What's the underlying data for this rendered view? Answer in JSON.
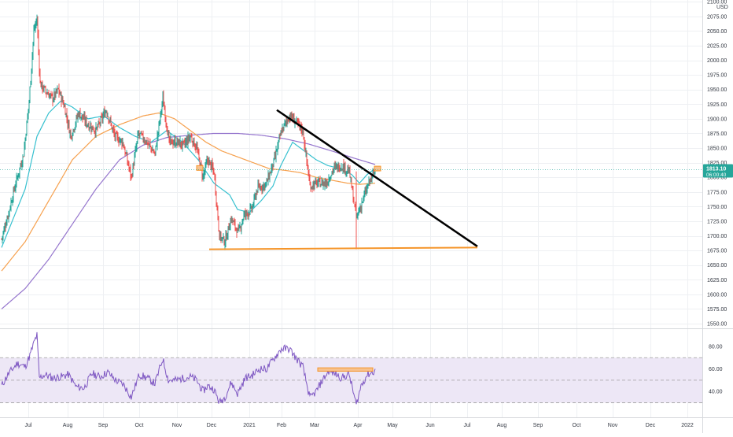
{
  "chart_data": [
    {
      "type": "candlestick",
      "title": "",
      "currency": "USD",
      "x_ticks": [
        "Jul",
        "Aug",
        "Sep",
        "Oct",
        "Nov",
        "Dec",
        "2021",
        "Feb",
        "Mar",
        "Apr",
        "May",
        "Jun",
        "Jul",
        "Aug",
        "Sep",
        "Oct",
        "Nov",
        "Dec",
        "2022"
      ],
      "y_ticks": [
        "2100.00",
        "2075.00",
        "2050.00",
        "2025.00",
        "2000.00",
        "1975.00",
        "1950.00",
        "1925.00",
        "1900.00",
        "1875.00",
        "1850.00",
        "1825.00",
        "1800.00",
        "1775.00",
        "1750.00",
        "1725.00",
        "1700.00",
        "1675.00",
        "1650.00",
        "1625.00",
        "1600.00",
        "1575.00",
        "1550.00"
      ],
      "ylim": [
        1546,
        2103
      ],
      "price_label": "1813.10",
      "countdown_label": "06:00:40",
      "colors": {
        "up": "#26a69a",
        "down": "#ef5350",
        "ma_short": "#36c0cf",
        "ma_mid": "#f6a04d",
        "ma_long": "#9575cd",
        "trendline": "#000000",
        "support": "#f5952a",
        "highlight_fill": "#f7c28e",
        "highlight_stroke": "#f5952a"
      },
      "price_keypoints": [
        [
          0,
          1695
        ],
        [
          8,
          1735
        ],
        [
          18,
          1790
        ],
        [
          28,
          1840
        ],
        [
          35,
          1930
        ],
        [
          41,
          2050
        ],
        [
          45,
          2070
        ],
        [
          49,
          1960
        ],
        [
          57,
          1945
        ],
        [
          65,
          1935
        ],
        [
          72,
          1950
        ],
        [
          80,
          1920
        ],
        [
          88,
          1870
        ],
        [
          98,
          1910
        ],
        [
          110,
          1890
        ],
        [
          120,
          1880
        ],
        [
          133,
          1915
        ],
        [
          144,
          1870
        ],
        [
          154,
          1860
        ],
        [
          165,
          1800
        ],
        [
          174,
          1875
        ],
        [
          185,
          1860
        ],
        [
          195,
          1840
        ],
        [
          205,
          1935
        ],
        [
          213,
          1860
        ],
        [
          222,
          1860
        ],
        [
          232,
          1855
        ],
        [
          240,
          1870
        ],
        [
          248,
          1850
        ],
        [
          256,
          1800
        ],
        [
          262,
          1830
        ],
        [
          270,
          1810
        ],
        [
          277,
          1700
        ],
        [
          284,
          1690
        ],
        [
          292,
          1730
        ],
        [
          301,
          1705
        ],
        [
          308,
          1735
        ],
        [
          318,
          1745
        ],
        [
          325,
          1780
        ],
        [
          337,
          1790
        ],
        [
          347,
          1830
        ],
        [
          356,
          1880
        ],
        [
          366,
          1905
        ],
        [
          374,
          1895
        ],
        [
          383,
          1880
        ],
        [
          392,
          1785
        ],
        [
          402,
          1790
        ],
        [
          413,
          1790
        ],
        [
          422,
          1815
        ],
        [
          432,
          1820
        ],
        [
          442,
          1810
        ],
        [
          451,
          1730
        ],
        [
          459,
          1760
        ],
        [
          467,
          1790
        ],
        [
          475,
          1812
        ]
      ],
      "ma_short_keypoints": [
        [
          0,
          1680
        ],
        [
          15,
          1730
        ],
        [
          30,
          1780
        ],
        [
          45,
          1870
        ],
        [
          60,
          1910
        ],
        [
          75,
          1930
        ],
        [
          90,
          1920
        ],
        [
          110,
          1900
        ],
        [
          130,
          1905
        ],
        [
          150,
          1885
        ],
        [
          170,
          1870
        ],
        [
          190,
          1860
        ],
        [
          210,
          1880
        ],
        [
          230,
          1860
        ],
        [
          250,
          1830
        ],
        [
          270,
          1790
        ],
        [
          290,
          1770
        ],
        [
          300,
          1745
        ],
        [
          315,
          1740
        ],
        [
          330,
          1760
        ],
        [
          345,
          1785
        ],
        [
          355,
          1820
        ],
        [
          370,
          1860
        ],
        [
          385,
          1845
        ],
        [
          400,
          1830
        ],
        [
          415,
          1820
        ],
        [
          430,
          1815
        ],
        [
          445,
          1805
        ],
        [
          455,
          1790
        ],
        [
          465,
          1805
        ],
        [
          475,
          1815
        ]
      ],
      "ma_mid_keypoints": [
        [
          0,
          1640
        ],
        [
          30,
          1690
        ],
        [
          60,
          1760
        ],
        [
          90,
          1830
        ],
        [
          120,
          1870
        ],
        [
          150,
          1890
        ],
        [
          180,
          1905
        ],
        [
          200,
          1910
        ],
        [
          220,
          1900
        ],
        [
          240,
          1880
        ],
        [
          260,
          1860
        ],
        [
          280,
          1845
        ],
        [
          300,
          1835
        ],
        [
          320,
          1825
        ],
        [
          340,
          1815
        ],
        [
          360,
          1812
        ],
        [
          380,
          1808
        ],
        [
          400,
          1800
        ],
        [
          420,
          1795
        ],
        [
          440,
          1790
        ],
        [
          455,
          1788
        ],
        [
          475,
          1790
        ]
      ],
      "ma_long_keypoints": [
        [
          0,
          1575
        ],
        [
          30,
          1610
        ],
        [
          60,
          1660
        ],
        [
          90,
          1720
        ],
        [
          120,
          1780
        ],
        [
          150,
          1830
        ],
        [
          180,
          1855
        ],
        [
          210,
          1868
        ],
        [
          240,
          1872
        ],
        [
          270,
          1875
        ],
        [
          300,
          1875
        ],
        [
          330,
          1872
        ],
        [
          360,
          1866
        ],
        [
          390,
          1857
        ],
        [
          420,
          1845
        ],
        [
          450,
          1832
        ],
        [
          475,
          1822
        ]
      ],
      "annotations": {
        "trendline": [
          {
            "bar": 350,
            "price": 1915
          },
          {
            "bar": 605,
            "price": 1682
          }
        ],
        "support": [
          {
            "bar": 264,
            "price": 1677
          },
          {
            "bar": 605,
            "price": 1680
          }
        ],
        "highlight_boxes": [
          {
            "bar_from": 248,
            "bar_to": 256,
            "price_from": 1812,
            "price_to": 1820
          },
          {
            "bar_from": 474,
            "bar_to": 482,
            "price_from": 1811,
            "price_to": 1819
          }
        ]
      }
    },
    {
      "type": "line",
      "title": "",
      "y_ticks": [
        "80.00",
        "60.00",
        "40.00"
      ],
      "ylim": [
        17,
        94
      ],
      "band": [
        30,
        70
      ],
      "midline": 50,
      "colors": {
        "line": "#7e57c2",
        "band": "#ede7f6",
        "band_lines": "#9e9e9e",
        "highlight_fill": "#f7c28e",
        "highlight_stroke": "#f5952a"
      },
      "rsi_keypoints": [
        [
          0,
          45
        ],
        [
          8,
          55
        ],
        [
          20,
          65
        ],
        [
          30,
          62
        ],
        [
          36,
          72
        ],
        [
          42,
          85
        ],
        [
          45,
          90
        ],
        [
          48,
          52
        ],
        [
          55,
          55
        ],
        [
          65,
          52
        ],
        [
          75,
          53
        ],
        [
          85,
          55
        ],
        [
          95,
          44
        ],
        [
          105,
          43
        ],
        [
          115,
          56
        ],
        [
          125,
          53
        ],
        [
          135,
          57
        ],
        [
          145,
          50
        ],
        [
          155,
          46
        ],
        [
          165,
          35
        ],
        [
          175,
          55
        ],
        [
          185,
          52
        ],
        [
          195,
          47
        ],
        [
          205,
          69
        ],
        [
          212,
          50
        ],
        [
          222,
          50
        ],
        [
          232,
          52
        ],
        [
          240,
          53
        ],
        [
          248,
          50
        ],
        [
          256,
          40
        ],
        [
          262,
          45
        ],
        [
          270,
          42
        ],
        [
          277,
          30
        ],
        [
          284,
          35
        ],
        [
          292,
          48
        ],
        [
          300,
          38
        ],
        [
          310,
          52
        ],
        [
          318,
          54
        ],
        [
          328,
          60
        ],
        [
          337,
          60
        ],
        [
          347,
          70
        ],
        [
          356,
          78
        ],
        [
          366,
          78
        ],
        [
          374,
          70
        ],
        [
          383,
          62
        ],
        [
          392,
          34
        ],
        [
          400,
          40
        ],
        [
          408,
          50
        ],
        [
          416,
          58
        ],
        [
          424,
          56
        ],
        [
          432,
          52
        ],
        [
          442,
          55
        ],
        [
          451,
          28
        ],
        [
          457,
          45
        ],
        [
          465,
          55
        ],
        [
          475,
          58
        ]
      ],
      "highlight_box": {
        "bar_from": 402,
        "bar_to": 472,
        "value_from": 58,
        "value_to": 61
      }
    }
  ]
}
